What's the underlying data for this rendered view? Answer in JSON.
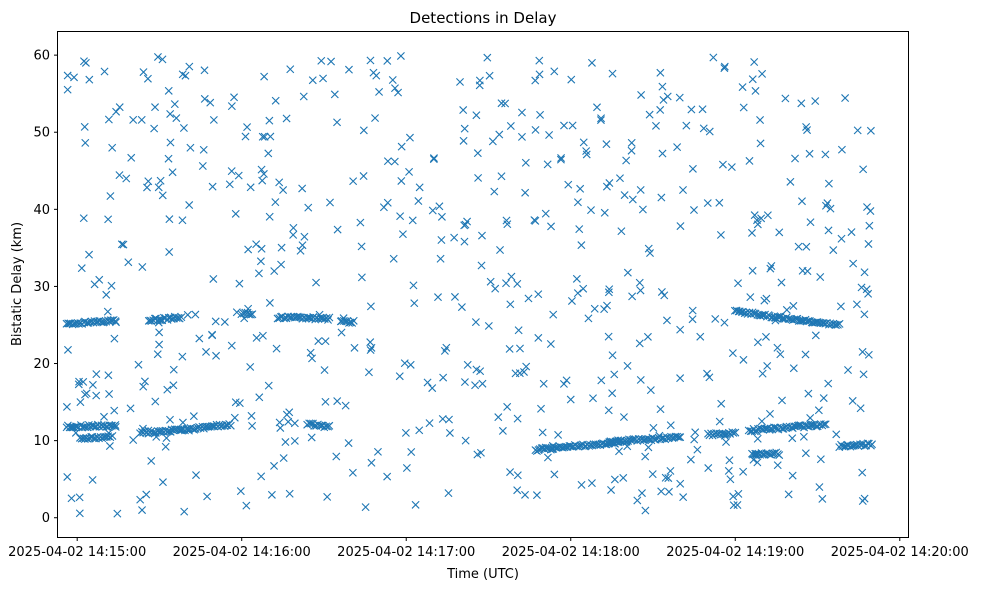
{
  "chart_data": {
    "type": "scatter",
    "title": "Detections in Delay",
    "xlabel": "Time (UTC)",
    "ylabel": "Bistatic Delay (km)",
    "date_prefix": "2025-04-02",
    "xlim": [
      "14:14:53",
      "14:20:03"
    ],
    "ylim": [
      -2.5,
      63
    ],
    "x_ticks": [
      "2025-04-02 14:15:00",
      "2025-04-02 14:16:00",
      "2025-04-02 14:17:00",
      "2025-04-02 14:18:00",
      "2025-04-02 14:19:00",
      "2025-04-02 14:20:00"
    ],
    "y_ticks": [
      "0",
      "10",
      "20",
      "30",
      "40",
      "50",
      "60"
    ],
    "marker": "x",
    "color": "#1f77b4",
    "grid": false,
    "legend": "none",
    "tracks": [
      {
        "start": "14:14:56",
        "end": "14:15:14",
        "delay_start": 25.2,
        "delay_end": 25.5
      },
      {
        "start": "14:14:56",
        "end": "14:15:14",
        "delay_start": 11.8,
        "delay_end": 12.0
      },
      {
        "start": "14:15:01",
        "end": "14:15:12",
        "delay_start": 10.2,
        "delay_end": 10.5
      },
      {
        "start": "14:15:23",
        "end": "14:15:38",
        "delay_start": 11.0,
        "delay_end": 11.4
      },
      {
        "start": "14:15:26",
        "end": "14:15:38",
        "delay_start": 25.6,
        "delay_end": 26.0
      },
      {
        "start": "14:15:38",
        "end": "14:15:56",
        "delay_start": 11.4,
        "delay_end": 12.1
      },
      {
        "start": "14:16:00",
        "end": "14:16:04",
        "delay_start": 26.5,
        "delay_end": 26.5
      },
      {
        "start": "14:16:13",
        "end": "14:16:32",
        "delay_start": 26.0,
        "delay_end": 25.8
      },
      {
        "start": "14:16:24",
        "end": "14:16:32",
        "delay_start": 12.2,
        "delay_end": 11.8
      },
      {
        "start": "14:16:36",
        "end": "14:16:41",
        "delay_start": 25.4,
        "delay_end": 25.4
      },
      {
        "start": "14:17:47",
        "end": "14:18:18",
        "delay_start": 8.8,
        "delay_end": 9.8
      },
      {
        "start": "14:18:14",
        "end": "14:18:40",
        "delay_start": 9.8,
        "delay_end": 10.5
      },
      {
        "start": "14:18:50",
        "end": "14:19:00",
        "delay_start": 10.8,
        "delay_end": 11.0
      },
      {
        "start": "14:19:00",
        "end": "14:19:16",
        "delay_start": 26.8,
        "delay_end": 26.0
      },
      {
        "start": "14:19:05",
        "end": "14:19:33",
        "delay_start": 11.3,
        "delay_end": 12.1
      },
      {
        "start": "14:19:16",
        "end": "14:19:38",
        "delay_start": 26.0,
        "delay_end": 25.0
      },
      {
        "start": "14:19:06",
        "end": "14:19:16",
        "delay_start": 8.3,
        "delay_end": 8.3
      },
      {
        "start": "14:19:38",
        "end": "14:19:50",
        "delay_start": 9.3,
        "delay_end": 9.5
      }
    ],
    "clutter": {
      "approximate_count": 650,
      "delay_range": [
        0.5,
        60
      ],
      "time_range": [
        "14:14:56",
        "14:19:50"
      ]
    }
  }
}
